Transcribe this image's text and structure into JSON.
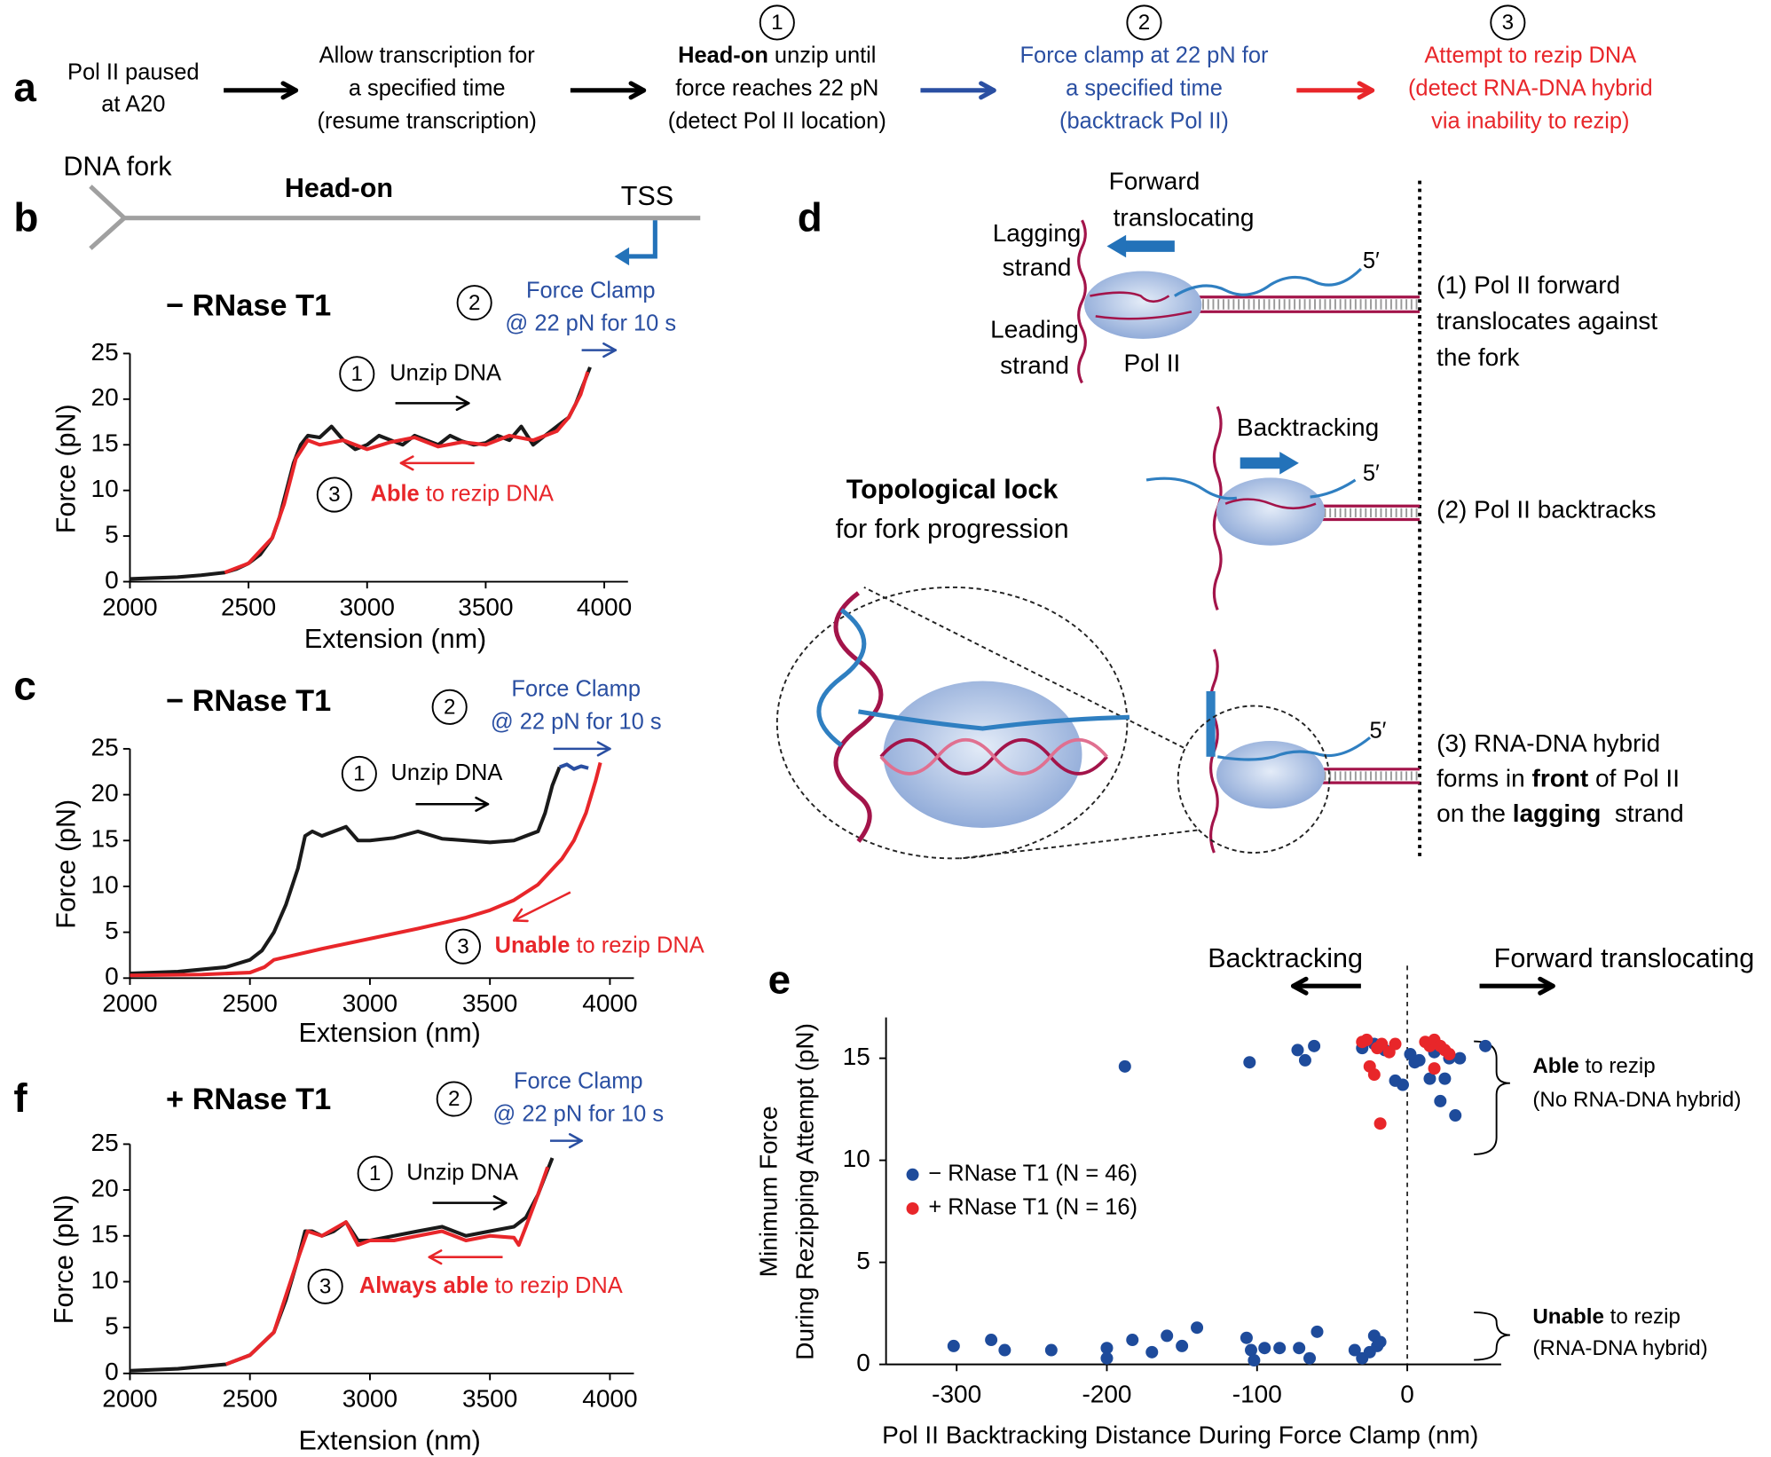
{
  "panel_labels": [
    "a",
    "b",
    "c",
    "d",
    "e",
    "f"
  ],
  "panel_a": {
    "steps": [
      {
        "color": "#000000",
        "lines": [
          [
            "Pol II paused"
          ],
          [
            "at A20"
          ]
        ]
      },
      {
        "color": "#000000",
        "lines": [
          [
            "Allow transcription for"
          ],
          [
            "a specified time"
          ],
          [
            "(resume transcription)"
          ]
        ]
      },
      {
        "number": "1",
        "color": "#000000",
        "lines": [
          [
            {
              "bold": "Head-on"
            },
            " unzip until"
          ],
          [
            "force reaches 22 pN"
          ],
          [
            "(detect Pol II location)"
          ]
        ]
      },
      {
        "number": "2",
        "color": "#2a4fa2",
        "lines": [
          [
            "Force clamp at 22 pN for"
          ],
          [
            "a specified time"
          ],
          [
            "(backtrack Pol II)"
          ]
        ]
      },
      {
        "number": "3",
        "color": "#e8262a",
        "lines": [
          [
            "Attempt to rezip DNA"
          ],
          [
            "(detect RNA-DNA hybrid"
          ],
          [
            "via inability to rezip)"
          ]
        ]
      }
    ]
  },
  "panel_b_diagram": {
    "fork": "DNA fork",
    "direction": "Head-on",
    "tss": "TSS"
  },
  "panel_d": {
    "forward": [
      "Forward",
      "translocating"
    ],
    "lagging": [
      "Lagging",
      "strand"
    ],
    "leading": [
      "Leading",
      "strand"
    ],
    "pol": "Pol II",
    "five_prime": "5′",
    "backtracking": "Backtracking",
    "lock": [
      [
        {
          "bold": "Topological lock"
        }
      ],
      [
        "for fork progression"
      ]
    ],
    "steps": [
      [
        [
          "(1) Pol II forward"
        ],
        [
          "translocates against"
        ],
        [
          "the fork"
        ]
      ],
      [
        [
          "(2) Pol II backtracks"
        ]
      ],
      [
        [
          "(3) RNA-DNA hybrid"
        ],
        [
          "forms in ",
          {
            "bold": "front"
          },
          " of Pol II"
        ],
        [
          "on the ",
          {
            "bold": "lagging"
          },
          "  strand"
        ]
      ]
    ]
  },
  "chart_data": [
    {
      "type": "line",
      "title": "− RNase T1",
      "xlabel": "Extension (nm)",
      "ylabel": "Force (pN)",
      "xlim": [
        2000,
        4100
      ],
      "ylim": [
        0,
        25
      ],
      "xticks": [
        2000,
        2500,
        3000,
        3500,
        4000
      ],
      "yticks": [
        0,
        5,
        10,
        15,
        20,
        25
      ],
      "series": [
        {
          "color": "#1a1a1a",
          "x": [
            2000,
            2100,
            2200,
            2300,
            2400,
            2450,
            2500,
            2550,
            2600,
            2630,
            2660,
            2690,
            2720,
            2750,
            2800,
            2850,
            2900,
            2950,
            3000,
            3050,
            3100,
            3150,
            3200,
            3250,
            3300,
            3350,
            3400,
            3450,
            3500,
            3550,
            3600,
            3650,
            3700,
            3750,
            3800,
            3850,
            3880,
            3910,
            3940
          ],
          "values": [
            0.3,
            0.4,
            0.5,
            0.7,
            1.0,
            1.4,
            2.0,
            3.0,
            4.8,
            7,
            10,
            13,
            15,
            16,
            15.8,
            17,
            15.5,
            14.5,
            15,
            16,
            15.5,
            15,
            16,
            15.5,
            15,
            16,
            15.4,
            15,
            15.2,
            16,
            15.5,
            17,
            15,
            16,
            17,
            18,
            19.5,
            21.5,
            23.5
          ]
        },
        {
          "color": "#e8262a",
          "x": [
            2400,
            2500,
            2600,
            2650,
            2700,
            2750,
            2800,
            2900,
            3000,
            3100,
            3200,
            3300,
            3400,
            3500,
            3600,
            3700,
            3800,
            3850,
            3900,
            3930
          ],
          "values": [
            1.0,
            2.0,
            4.8,
            8.5,
            13.5,
            15.5,
            15,
            15.5,
            14.5,
            15.3,
            15.8,
            14.8,
            15.3,
            15,
            16,
            15.5,
            16.5,
            18,
            20.5,
            23
          ]
        }
      ],
      "steps": [
        {
          "number": "1",
          "color": "#000000",
          "lines": [
            [
              "Unzip DNA"
            ]
          ]
        },
        {
          "number": "2",
          "color": "#2a4fa2",
          "lines": [
            [
              "Force Clamp"
            ],
            [
              "@ 22 pN for 10 s"
            ]
          ]
        },
        {
          "number": "3",
          "color": "#e8262a",
          "lines": [
            [
              {
                "bold": "Able"
              },
              " to rezip DNA"
            ]
          ]
        }
      ]
    },
    {
      "type": "line",
      "title": "− RNase T1",
      "xlabel": "Extension (nm)",
      "ylabel": "Force (pN)",
      "xlim": [
        2000,
        4100
      ],
      "ylim": [
        0,
        25
      ],
      "xticks": [
        2000,
        2500,
        3000,
        3500,
        4000
      ],
      "yticks": [
        0,
        5,
        10,
        15,
        20,
        25
      ],
      "series": [
        {
          "color": "#1a1a1a",
          "x": [
            2000,
            2200,
            2400,
            2500,
            2550,
            2600,
            2650,
            2700,
            2730,
            2760,
            2800,
            2850,
            2900,
            2950,
            3000,
            3100,
            3200,
            3300,
            3400,
            3500,
            3600,
            3650,
            3700,
            3730,
            3760,
            3790
          ],
          "values": [
            0.5,
            0.7,
            1.2,
            2,
            3,
            5,
            8,
            12,
            15.5,
            16,
            15.5,
            16,
            16.5,
            15,
            15,
            15.3,
            16,
            15.2,
            15,
            14.8,
            15,
            15.5,
            16,
            18,
            21,
            23
          ]
        },
        {
          "color": "#2a4fa2",
          "x": [
            3790,
            3820,
            3850,
            3880,
            3910
          ],
          "values": [
            23,
            23.3,
            22.8,
            23.1,
            22.9
          ]
        },
        {
          "color": "#e8262a",
          "x": [
            2000,
            2300,
            2500,
            2560,
            2600,
            2800,
            3000,
            3200,
            3400,
            3500,
            3600,
            3700,
            3800,
            3850,
            3900,
            3940,
            3960
          ],
          "values": [
            0.3,
            0.4,
            0.6,
            1.2,
            2,
            3.2,
            4.3,
            5.4,
            6.6,
            7.4,
            8.5,
            10.2,
            13,
            15,
            18,
            21.5,
            23.5
          ]
        }
      ],
      "steps": [
        {
          "number": "1",
          "color": "#000000",
          "lines": [
            [
              "Unzip DNA"
            ]
          ]
        },
        {
          "number": "2",
          "color": "#2a4fa2",
          "lines": [
            [
              "Force Clamp"
            ],
            [
              "@ 22 pN for 10 s"
            ]
          ]
        },
        {
          "number": "3",
          "color": "#e8262a",
          "lines": [
            [
              {
                "bold": "Unable"
              },
              " to rezip DNA"
            ]
          ]
        }
      ]
    },
    {
      "type": "line",
      "title": "+ RNase T1",
      "xlabel": "Extension (nm)",
      "ylabel": "Force (pN)",
      "xlim": [
        2000,
        4100
      ],
      "ylim": [
        0,
        25
      ],
      "xticks": [
        2000,
        2500,
        3000,
        3500,
        4000
      ],
      "yticks": [
        0,
        5,
        10,
        15,
        20,
        25
      ],
      "series": [
        {
          "color": "#1a1a1a",
          "x": [
            2000,
            2200,
            2400,
            2500,
            2600,
            2650,
            2700,
            2730,
            2760,
            2800,
            2850,
            2900,
            2950,
            3000,
            3100,
            3200,
            3300,
            3400,
            3500,
            3600,
            3650,
            3700,
            3730,
            3760
          ],
          "values": [
            0.3,
            0.5,
            1,
            2,
            4.5,
            8,
            12.5,
            15.5,
            15.5,
            15,
            15.5,
            16.5,
            14.5,
            14.5,
            15,
            15.5,
            16,
            15,
            15.5,
            16,
            17,
            19.5,
            21.5,
            23.5
          ]
        },
        {
          "color": "#e8262a",
          "x": [
            2400,
            2500,
            2600,
            2700,
            2740,
            2800,
            2900,
            2950,
            3000,
            3100,
            3200,
            3300,
            3400,
            3500,
            3600,
            3620,
            3650,
            3700,
            3740
          ],
          "values": [
            1,
            2,
            4.5,
            12.5,
            15.5,
            15,
            16.5,
            14,
            14.5,
            14.5,
            15,
            15.5,
            14.5,
            15,
            14.8,
            14,
            16,
            19.5,
            22.5
          ]
        }
      ],
      "steps": [
        {
          "number": "1",
          "color": "#000000",
          "lines": [
            [
              "Unzip DNA"
            ]
          ]
        },
        {
          "number": "2",
          "color": "#2a4fa2",
          "lines": [
            [
              "Force Clamp"
            ],
            [
              "@ 22 pN for 10 s"
            ]
          ]
        },
        {
          "number": "3",
          "color": "#e8262a",
          "lines": [
            [
              {
                "bold": "Always able"
              },
              " to rezip DNA"
            ]
          ]
        }
      ]
    },
    {
      "type": "scatter",
      "xlabel": "Pol II Backtracking Distance During Force Clamp (nm)",
      "ylabel": [
        "Minimum Force",
        "During Rezipping Attempt (pN)"
      ],
      "xlim": [
        -347,
        55
      ],
      "ylim": [
        0,
        17
      ],
      "xticks": [
        -300,
        -200,
        -100,
        0
      ],
      "yticks": [
        0,
        5,
        10,
        15
      ],
      "directions": [
        "Backtracking",
        "Forward translocating"
      ],
      "groups": [
        [
          [
            {
              "bold": "Able"
            },
            " to rezip"
          ],
          [
            "(No RNA-DNA hybrid)"
          ]
        ],
        [
          [
            {
              "bold": "Unable"
            },
            " to rezip"
          ],
          [
            "(RNA-DNA hybrid)"
          ]
        ]
      ],
      "series": [
        {
          "name": "− RNase T1 (N = 46)",
          "color": "#1e4b9b",
          "x": [
            -188,
            -105,
            -73,
            -68,
            -62,
            -30,
            -22,
            -15,
            -8,
            -3,
            5,
            8,
            2,
            15,
            18,
            22,
            25,
            28,
            32,
            35,
            52,
            -302,
            -277,
            -268,
            -237,
            -200,
            -200,
            -183,
            -170,
            -160,
            -150,
            -140,
            -107,
            -104,
            -102,
            -95,
            -85,
            -72,
            -65,
            -60,
            -35,
            -30,
            -25,
            -22,
            -20,
            -18
          ],
          "values": [
            14.6,
            14.8,
            15.4,
            14.9,
            15.6,
            15.5,
            15.7,
            15.4,
            13.9,
            13.7,
            14.8,
            14.9,
            15.2,
            14.0,
            15.3,
            12.9,
            14.0,
            15.0,
            12.2,
            15.0,
            15.6,
            0.9,
            1.2,
            0.7,
            0.7,
            0.8,
            0.3,
            1.2,
            0.6,
            1.4,
            0.9,
            1.8,
            1.3,
            0.7,
            0.2,
            0.8,
            0.8,
            0.8,
            0.3,
            1.6,
            0.7,
            0.3,
            0.6,
            1.4,
            0.9,
            1.1
          ]
        },
        {
          "name": "+ RNase T1 (N = 16)",
          "color": "#e8262a",
          "x": [
            -30,
            -27,
            -25,
            -20,
            -17,
            -22,
            -18,
            -12,
            -8,
            12,
            15,
            18,
            22,
            25,
            28,
            18
          ],
          "values": [
            15.8,
            15.9,
            14.6,
            15.5,
            15.7,
            14.2,
            11.8,
            15.3,
            15.7,
            15.8,
            15.6,
            15.9,
            15.6,
            15.4,
            15.2,
            14.5
          ]
        }
      ]
    }
  ]
}
